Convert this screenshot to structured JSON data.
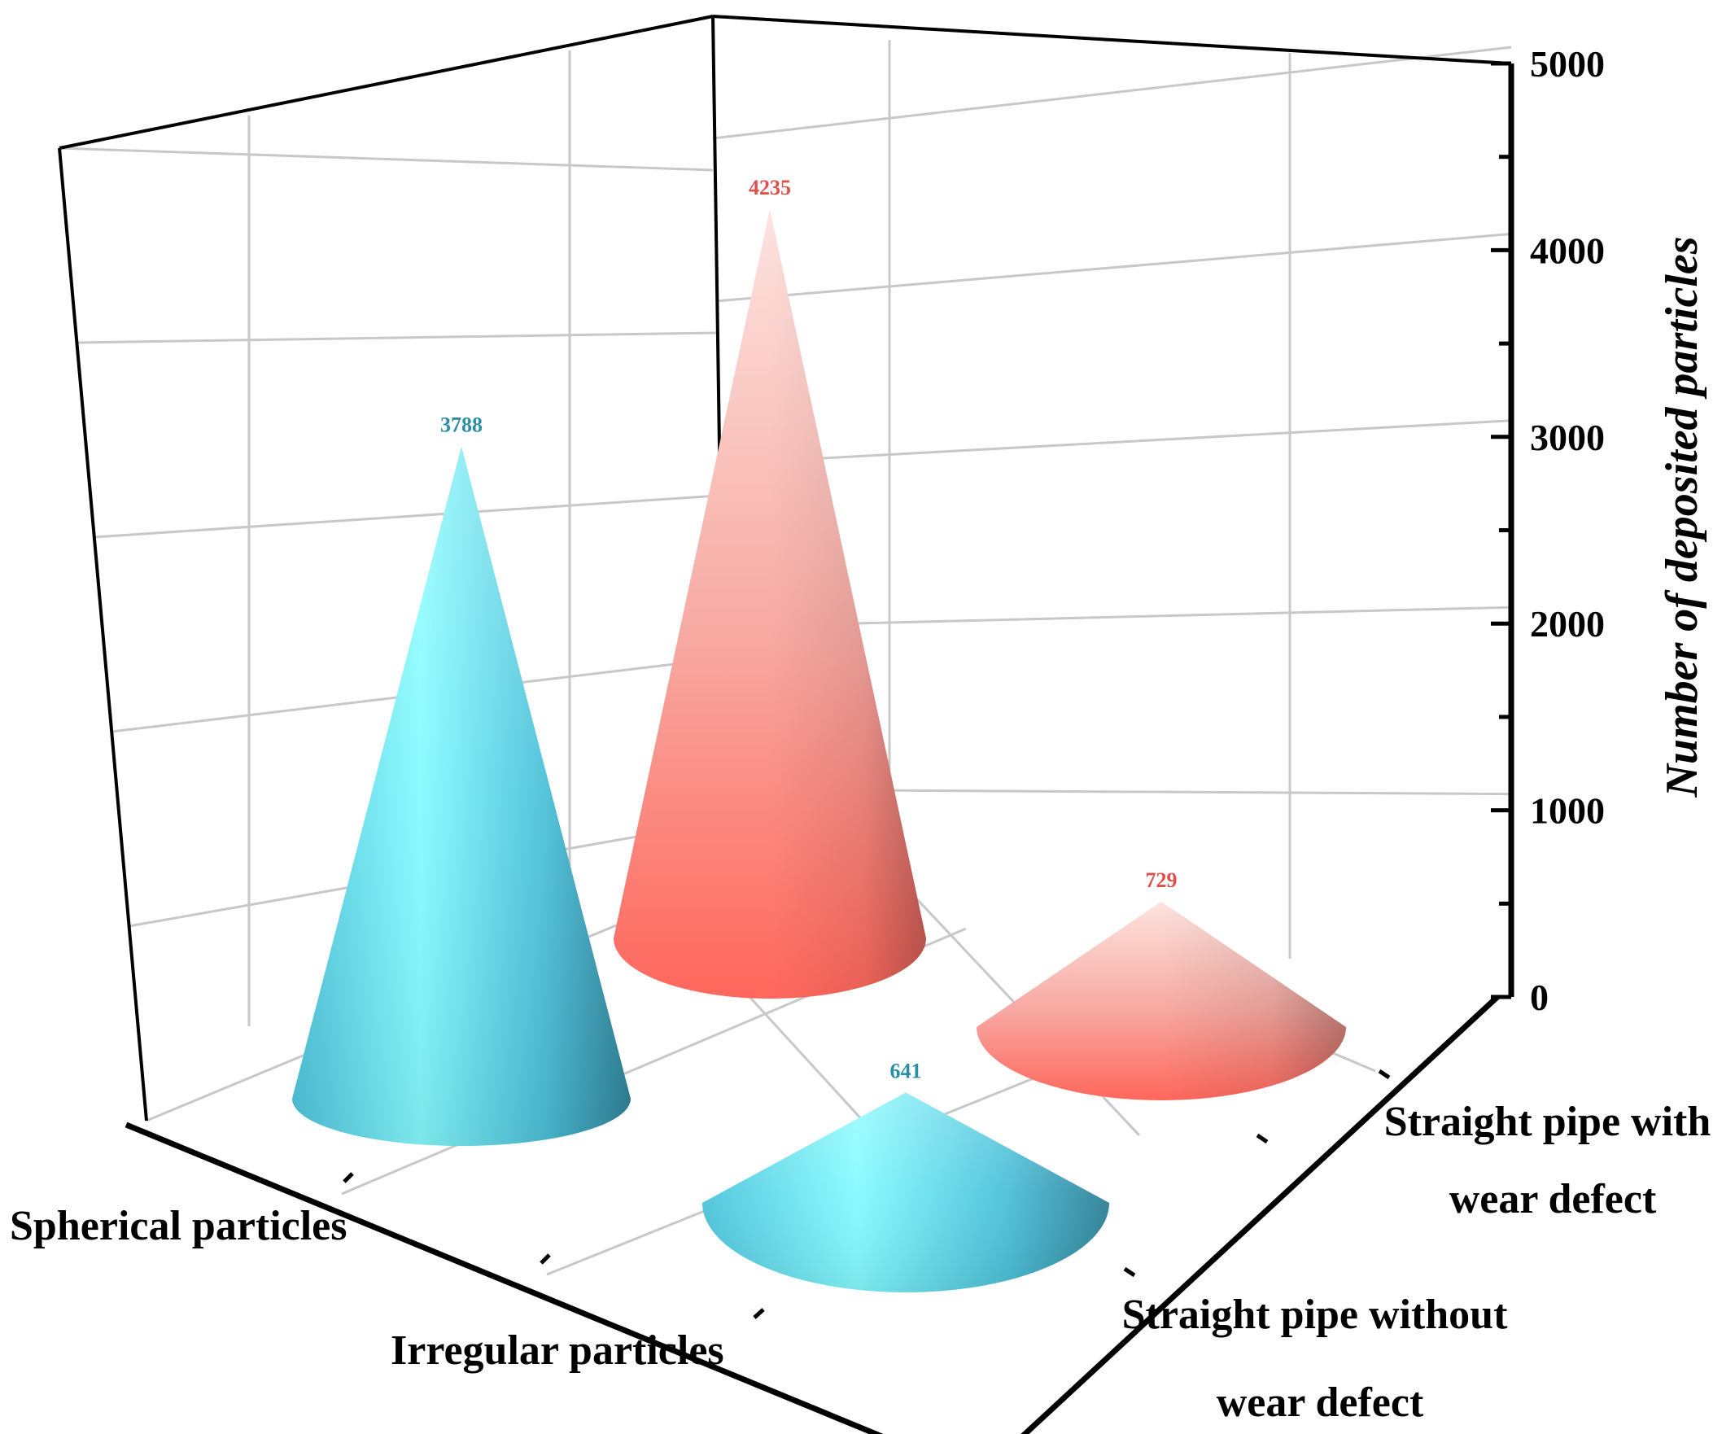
{
  "chart_data": {
    "type": "bar",
    "style": "3d-cone",
    "categories": [
      "Straight pipe without wear defect",
      "Straight pipe with wear defect"
    ],
    "groups": [
      "Spherical particles",
      "Irregular particles"
    ],
    "series": [
      {
        "values": [
          641,
          3788
        ],
        "color": "#4fd6ea"
      },
      {
        "values": [
          729,
          4235
        ],
        "color": "#ff7a72"
      }
    ],
    "ylabel": "Number of deposited particles",
    "ylim": [
      0,
      5000
    ],
    "yticks": [
      "0",
      "1000",
      "2000",
      "3000",
      "4000",
      "5000"
    ],
    "data_labels": true,
    "grid": true
  }
}
